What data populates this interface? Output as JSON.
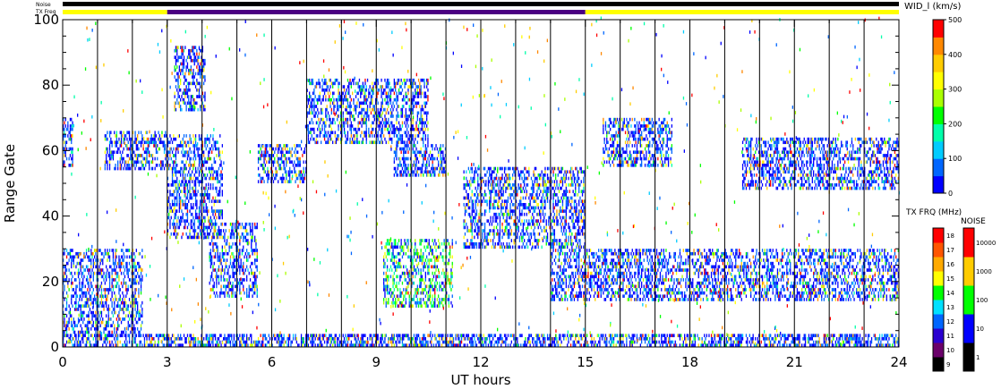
{
  "chart_data": {
    "type": "heatmap",
    "title": "",
    "xlabel": "UT hours",
    "ylabel": "Range Gate",
    "xlim": [
      0,
      24
    ],
    "ylim": [
      0,
      100
    ],
    "x_ticks": [
      "0",
      "3",
      "6",
      "9",
      "12",
      "15",
      "18",
      "21",
      "24"
    ],
    "y_ticks": [
      "0",
      "20",
      "40",
      "60",
      "80",
      "100"
    ],
    "grid": "vertical lines at every UT hour",
    "top_bars": {
      "noise_label": "Noise",
      "txfreq_label": "TX Freq",
      "noise_color": "#000000",
      "txfreq_segments": [
        {
          "start": 0,
          "end": 3,
          "color": "#ffff00"
        },
        {
          "start": 3,
          "end": 15,
          "color": "#4b0082"
        },
        {
          "start": 15,
          "end": 24,
          "color": "#ffff00"
        }
      ]
    },
    "color_scales": {
      "width": {
        "label": "WID_l (km/s)",
        "ticks": [
          "0",
          "100",
          "200",
          "300",
          "400",
          "500"
        ],
        "range": [
          0,
          500
        ],
        "colors": [
          "#0000ff",
          "#0066ff",
          "#00ccff",
          "#00ffaa",
          "#00ff00",
          "#aaff00",
          "#ffff00",
          "#ffcc00",
          "#ff8800",
          "#ff0000"
        ]
      },
      "tx_freq": {
        "label": "TX FRQ (MHz)",
        "ticks": [
          "9",
          "10",
          "11",
          "12",
          "13",
          "14",
          "15",
          "16",
          "17",
          "18"
        ],
        "colors": [
          "#000000",
          "#6a006a",
          "#2a00d0",
          "#0066ff",
          "#00e0ff",
          "#00ff00",
          "#ffff00",
          "#ffaa00",
          "#ff5500",
          "#ff0000"
        ]
      },
      "noise": {
        "label": "NOISE",
        "ticks": [
          "1",
          "10",
          "100",
          "1000",
          "10000"
        ],
        "colors": [
          "#000000",
          "#0000ff",
          "#00ff00",
          "#ffcc00",
          "#ff0000"
        ]
      }
    },
    "echo_regions": [
      {
        "x": [
          0,
          2.3
        ],
        "y": [
          3,
          30
        ],
        "comment": "0"
      },
      {
        "x": [
          0,
          0.3
        ],
        "y": [
          55,
          70
        ],
        "comment": "0"
      },
      {
        "x": [
          1.2,
          3.0
        ],
        "y": [
          54,
          66
        ],
        "comment": "0"
      },
      {
        "x": [
          3.0,
          4.6
        ],
        "y": [
          33,
          65
        ],
        "comment": "0"
      },
      {
        "x": [
          3.2,
          4.1
        ],
        "y": [
          72,
          92
        ],
        "comment": "0"
      },
      {
        "x": [
          4.2,
          5.6
        ],
        "y": [
          15,
          38
        ],
        "comment": "0"
      },
      {
        "x": [
          5.6,
          7.0
        ],
        "y": [
          50,
          62
        ],
        "comment": "0"
      },
      {
        "x": [
          7.0,
          10.5
        ],
        "y": [
          62,
          82
        ],
        "comment": "0"
      },
      {
        "x": [
          9.5,
          11.0
        ],
        "y": [
          52,
          62
        ],
        "comment": "0"
      },
      {
        "x": [
          9.2,
          11.2
        ],
        "y": [
          12,
          33
        ],
        "comment": "1"
      },
      {
        "x": [
          11.5,
          15.0
        ],
        "y": [
          30,
          55
        ],
        "comment": "0"
      },
      {
        "x": [
          14.0,
          24.0
        ],
        "y": [
          14,
          30
        ],
        "comment": "0"
      },
      {
        "x": [
          15.5,
          17.5
        ],
        "y": [
          55,
          70
        ],
        "comment": "0"
      },
      {
        "x": [
          19.5,
          24.0
        ],
        "y": [
          48,
          64
        ],
        "comment": "0"
      },
      {
        "x": [
          0,
          24
        ],
        "y": [
          0,
          4
        ],
        "comment": "0"
      }
    ]
  }
}
